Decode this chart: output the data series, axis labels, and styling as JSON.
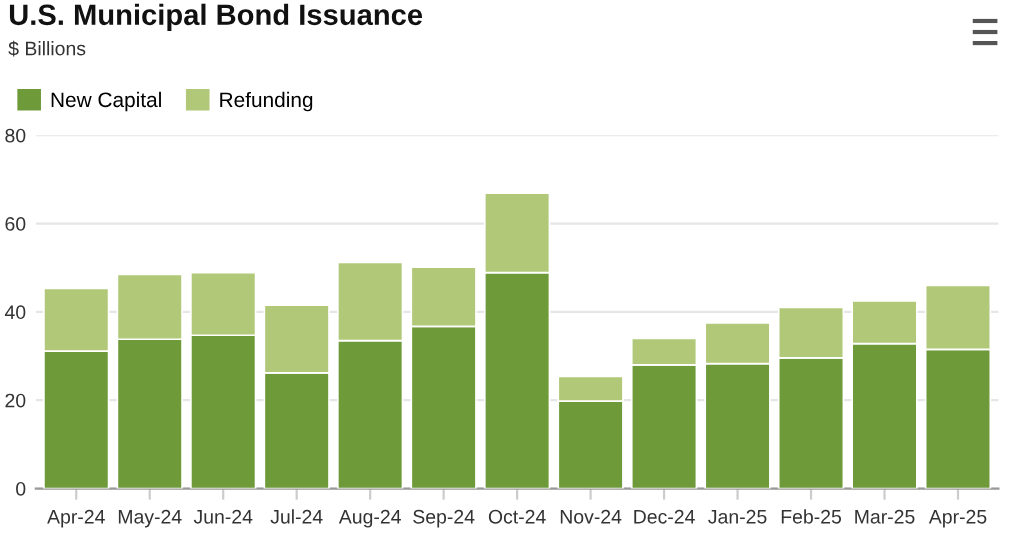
{
  "chart_data": {
    "type": "bar",
    "title": "U.S. Municipal Bond Issuance",
    "subtitle": "$ Billions",
    "categories": [
      "Apr-24",
      "May-24",
      "Jun-24",
      "Jul-24",
      "Aug-24",
      "Sep-24",
      "Oct-24",
      "Nov-24",
      "Dec-24",
      "Jan-25",
      "Feb-25",
      "Mar-25",
      "Apr-25"
    ],
    "series": [
      {
        "name": "New Capital",
        "color": "#6e9a3a",
        "values": [
          31.1,
          33.8,
          34.7,
          26.2,
          33.5,
          36.7,
          48.9,
          19.8,
          28.0,
          28.3,
          29.6,
          32.8,
          31.5
        ]
      },
      {
        "name": "Refunding",
        "color": "#b0c878",
        "values": [
          14.2,
          14.7,
          14.2,
          15.3,
          17.7,
          13.4,
          18.0,
          5.6,
          6.0,
          9.2,
          11.4,
          9.7,
          14.5
        ]
      }
    ],
    "stacked": true,
    "ylim": [
      0,
      80
    ],
    "yticks": [
      0,
      20,
      40,
      60,
      80
    ],
    "grid": "y",
    "legend": "top left"
  }
}
